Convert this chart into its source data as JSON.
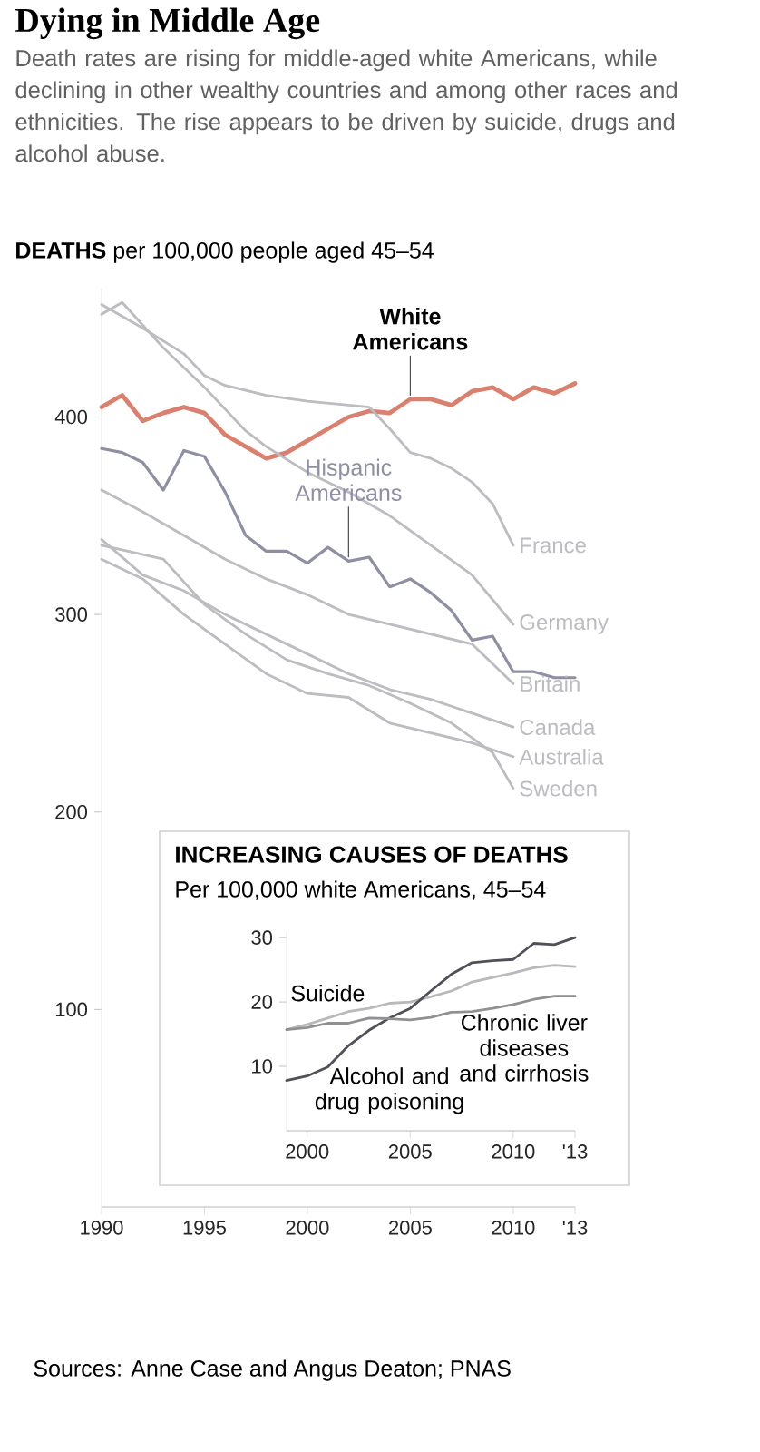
{
  "chart_data": [
    {
      "type": "line",
      "title": "Dying in Middle Age",
      "subtitle": "Death rates are rising for middle-aged white Americans, while declining in other wealthy countries and among other races and ethnicities. The rise appears to be driven by suicide, drugs and alcohol abuse.",
      "ylabel": "**DEATHS** per 100,000 people aged 45–54",
      "annotations": [
        "Sources: Anne Case and Angus Deaton; PNAS"
      ],
      "x": [
        1990,
        1991,
        1992,
        1993,
        1994,
        1995,
        1996,
        1997,
        1998,
        1999,
        2000,
        2001,
        2002,
        2003,
        2004,
        2005,
        2006,
        2007,
        2008,
        2009,
        2010,
        2011,
        2012,
        2013
      ],
      "xlim": [
        1990,
        2013
      ],
      "ylim": [
        0,
        465
      ],
      "xticks": [
        1990,
        1995,
        2000,
        2005,
        2010,
        {
          "value": 2013,
          "label": "'13"
        }
      ],
      "yticks": [
        100,
        200,
        300,
        400
      ],
      "series": [
        {
          "name": "White Americans",
          "color": "#d9806f",
          "values": [
            405,
            411,
            398,
            402,
            405,
            402,
            391,
            385,
            379,
            382,
            388,
            394,
            400,
            403,
            402,
            409,
            409,
            406,
            413,
            415,
            409,
            415,
            412,
            417
          ]
        },
        {
          "name": "Hispanic Americans",
          "color": "#8e8fa3",
          "values": [
            384,
            382,
            377,
            363,
            383,
            380,
            362,
            340,
            332,
            332,
            326,
            334,
            327,
            329,
            314,
            318,
            311,
            302,
            287,
            289,
            271,
            271,
            268,
            268
          ]
        },
        {
          "name": "France",
          "color": "#bcbcc1",
          "x": [
            1990,
            1992,
            1994,
            1995,
            1996,
            1998,
            2000,
            2002,
            2003,
            2004,
            2005,
            2006,
            2007,
            2008,
            2009,
            2010
          ],
          "values": [
            457,
            445,
            432,
            421,
            416,
            411,
            408,
            406,
            405,
            394,
            382,
            379,
            374,
            367,
            356,
            335
          ]
        },
        {
          "name": "Germany",
          "color": "#bcbcc1",
          "x": [
            1990,
            1991,
            1993,
            1995,
            1997,
            1998,
            2000,
            2002,
            2004,
            2006,
            2008,
            2010
          ],
          "values": [
            452,
            458,
            435,
            415,
            393,
            385,
            372,
            362,
            350,
            335,
            320,
            295
          ]
        },
        {
          "name": "Britain",
          "color": "#bcbcc1",
          "x": [
            1990,
            1992,
            1994,
            1996,
            1998,
            2000,
            2002,
            2004,
            2006,
            2008,
            2010
          ],
          "values": [
            363,
            352,
            340,
            328,
            318,
            310,
            300,
            295,
            290,
            285,
            265
          ]
        },
        {
          "name": "Canada",
          "color": "#bcbcc1",
          "x": [
            1990,
            1992,
            1994,
            1996,
            1998,
            2000,
            2002,
            2004,
            2006,
            2008,
            2010
          ],
          "values": [
            338,
            320,
            312,
            300,
            290,
            280,
            270,
            262,
            257,
            250,
            243
          ]
        },
        {
          "name": "Australia",
          "color": "#bcbcc1",
          "x": [
            1990,
            1992,
            1994,
            1996,
            1998,
            2000,
            2002,
            2004,
            2006,
            2008,
            2010
          ],
          "values": [
            328,
            318,
            300,
            285,
            270,
            260,
            258,
            245,
            240,
            235,
            228
          ]
        },
        {
          "name": "Sweden",
          "color": "#bcbcc1",
          "x": [
            1990,
            1993,
            1995,
            1997,
            1999,
            2001,
            2003,
            2005,
            2007,
            2009,
            2010
          ],
          "values": [
            335,
            328,
            305,
            290,
            277,
            270,
            264,
            255,
            245,
            230,
            212
          ]
        }
      ]
    },
    {
      "type": "line",
      "title": "INCREASING CAUSES OF DEATHS",
      "subtitle": "Per 100,000 white Americans, 45–54",
      "x": [
        1999,
        2000,
        2001,
        2002,
        2003,
        2004,
        2005,
        2006,
        2007,
        2008,
        2009,
        2010,
        2011,
        2012,
        2013
      ],
      "xlim": [
        1999,
        2013
      ],
      "ylim": [
        0,
        31
      ],
      "xticks": [
        2000,
        2005,
        2010,
        {
          "value": 2013,
          "label": "'13"
        }
      ],
      "yticks": [
        10,
        20,
        30
      ],
      "series": [
        {
          "name": "Suicide",
          "color": "#b9b9bb",
          "values": [
            15.7,
            16.5,
            17.5,
            18.5,
            19,
            19.8,
            20,
            20.8,
            21.7,
            23.1,
            23.8,
            24.5,
            25.3,
            25.7,
            25.5
          ]
        },
        {
          "name": "Alcohol and drug poisoning",
          "color": "#505058",
          "values": [
            7.8,
            8.5,
            9.9,
            13.2,
            15.6,
            17.5,
            19,
            21.7,
            24.3,
            26.1,
            26.4,
            26.6,
            29.1,
            28.9,
            30
          ]
        },
        {
          "name": "Chronic liver diseases and cirrhosis",
          "color": "#909092",
          "values": [
            15.7,
            16,
            16.7,
            16.7,
            17.5,
            17.4,
            17.2,
            17.6,
            18.4,
            18.5,
            19,
            19.6,
            20.4,
            20.9,
            20.9
          ]
        }
      ]
    }
  ]
}
